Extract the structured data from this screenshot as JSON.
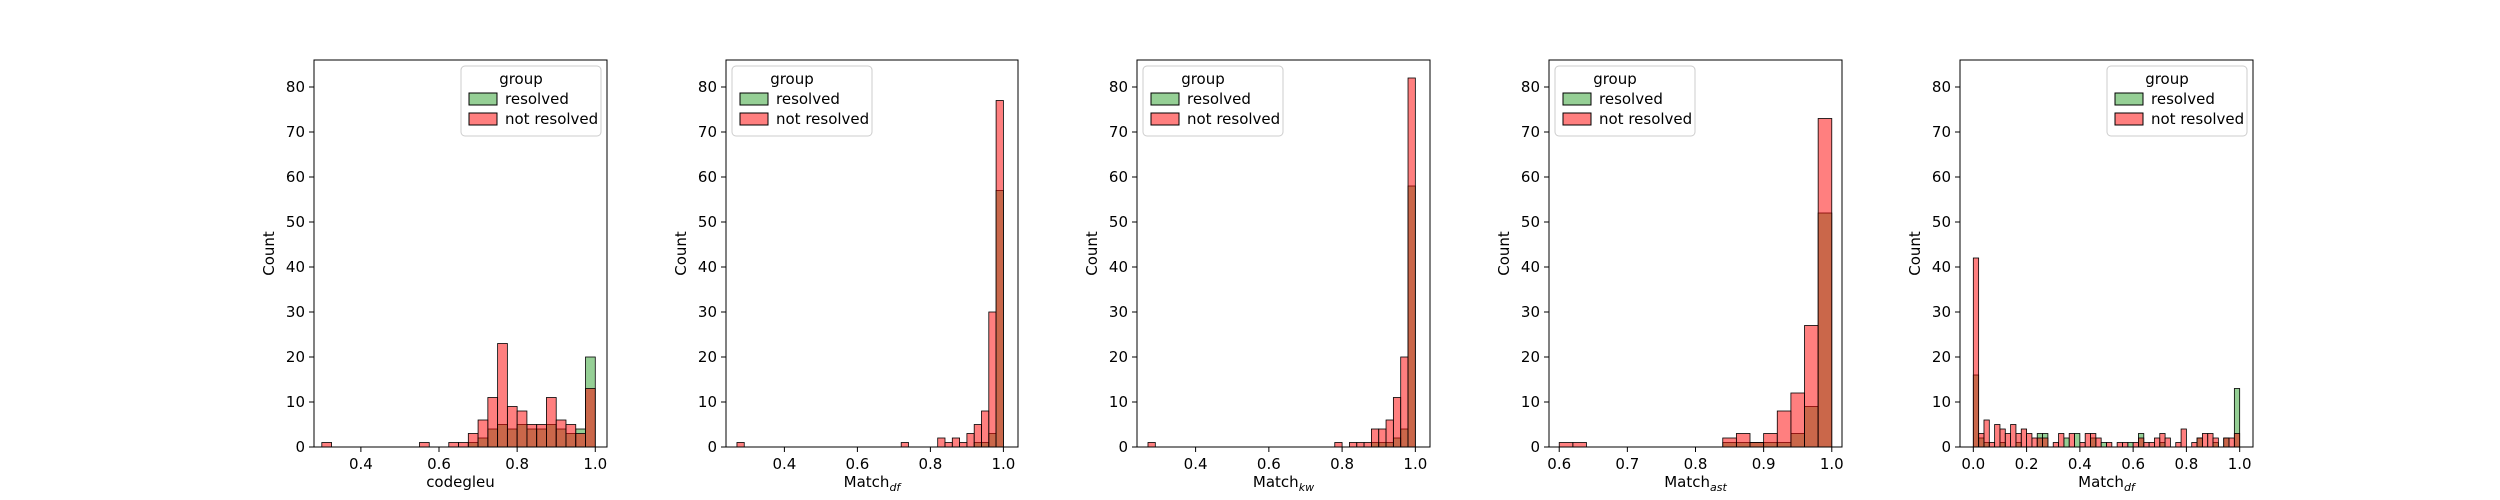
{
  "chart_data": [
    {
      "type": "histogram",
      "xlabel": "codegleu",
      "xlabel_sub": "",
      "ylabel": "Count",
      "xlim": [
        0.28,
        1.03
      ],
      "ylim": [
        0,
        86
      ],
      "xticks": [
        0.4,
        0.6,
        0.8,
        1.0
      ],
      "yticks": [
        0,
        10,
        20,
        30,
        40,
        50,
        60,
        70,
        80
      ],
      "bin_width": 0.025,
      "legend_title": "group",
      "legend_position": "top-right",
      "series": [
        {
          "name": "resolved",
          "color": "#2ca02c",
          "bins": [
            [
              0.675,
              1
            ],
            [
              0.7,
              2
            ],
            [
              0.725,
              4
            ],
            [
              0.75,
              5
            ],
            [
              0.775,
              4
            ],
            [
              0.8,
              5
            ],
            [
              0.825,
              4
            ],
            [
              0.85,
              4
            ],
            [
              0.875,
              5
            ],
            [
              0.9,
              4
            ],
            [
              0.925,
              3
            ],
            [
              0.95,
              4
            ],
            [
              0.975,
              20
            ]
          ]
        },
        {
          "name": "not resolved",
          "color": "#ff0000",
          "bins": [
            [
              0.3,
              1
            ],
            [
              0.55,
              1
            ],
            [
              0.625,
              1
            ],
            [
              0.65,
              1
            ],
            [
              0.675,
              3
            ],
            [
              0.7,
              6
            ],
            [
              0.725,
              11
            ],
            [
              0.75,
              23
            ],
            [
              0.775,
              9
            ],
            [
              0.8,
              8
            ],
            [
              0.825,
              5
            ],
            [
              0.85,
              5
            ],
            [
              0.875,
              11
            ],
            [
              0.9,
              6
            ],
            [
              0.925,
              5
            ],
            [
              0.95,
              3
            ],
            [
              0.975,
              13
            ]
          ]
        }
      ]
    },
    {
      "type": "histogram",
      "xlabel": "Match",
      "xlabel_sub": "df",
      "ylabel": "Count",
      "xlim": [
        0.24,
        1.04
      ],
      "ylim": [
        0,
        86
      ],
      "xticks": [
        0.4,
        0.6,
        0.8,
        1.0
      ],
      "yticks": [
        0,
        10,
        20,
        30,
        40,
        50,
        60,
        70,
        80
      ],
      "bin_width": 0.02,
      "legend_title": "group",
      "legend_position": "top-left",
      "series": [
        {
          "name": "resolved",
          "color": "#2ca02c",
          "bins": [
            [
              0.92,
              1
            ],
            [
              0.94,
              1
            ],
            [
              0.96,
              3
            ],
            [
              0.98,
              57
            ]
          ]
        },
        {
          "name": "not resolved",
          "color": "#ff0000",
          "bins": [
            [
              0.27,
              1
            ],
            [
              0.72,
              1
            ],
            [
              0.82,
              2
            ],
            [
              0.84,
              1
            ],
            [
              0.86,
              2
            ],
            [
              0.88,
              1
            ],
            [
              0.9,
              3
            ],
            [
              0.92,
              5
            ],
            [
              0.94,
              8
            ],
            [
              0.96,
              30
            ],
            [
              0.98,
              77
            ]
          ]
        }
      ]
    },
    {
      "type": "histogram",
      "xlabel": "Match",
      "xlabel_sub": "kw",
      "ylabel": "Count",
      "xlim": [
        0.24,
        1.04
      ],
      "ylim": [
        0,
        86
      ],
      "xticks": [
        0.4,
        0.6,
        0.8,
        1.0
      ],
      "yticks": [
        0,
        10,
        20,
        30,
        40,
        50,
        60,
        70,
        80
      ],
      "bin_width": 0.02,
      "legend_title": "group",
      "legend_position": "top-left",
      "series": [
        {
          "name": "resolved",
          "color": "#2ca02c",
          "bins": [
            [
              0.88,
              1
            ],
            [
              0.9,
              1
            ],
            [
              0.92,
              1
            ],
            [
              0.94,
              2
            ],
            [
              0.96,
              4
            ],
            [
              0.98,
              58
            ]
          ]
        },
        {
          "name": "not resolved",
          "color": "#ff0000",
          "bins": [
            [
              0.27,
              1
            ],
            [
              0.78,
              1
            ],
            [
              0.82,
              1
            ],
            [
              0.84,
              1
            ],
            [
              0.86,
              1
            ],
            [
              0.88,
              4
            ],
            [
              0.9,
              4
            ],
            [
              0.92,
              6
            ],
            [
              0.94,
              11
            ],
            [
              0.96,
              20
            ],
            [
              0.98,
              82
            ]
          ]
        }
      ]
    },
    {
      "type": "histogram",
      "xlabel": "Match",
      "xlabel_sub": "ast",
      "ylabel": "Count",
      "xlim": [
        0.585,
        1.015
      ],
      "ylim": [
        0,
        86
      ],
      "xticks": [
        0.6,
        0.7,
        0.8,
        0.9,
        1.0
      ],
      "yticks": [
        0,
        10,
        20,
        30,
        40,
        50,
        60,
        70,
        80
      ],
      "bin_width": 0.02,
      "legend_title": "group",
      "legend_position": "top-left",
      "series": [
        {
          "name": "resolved",
          "color": "#2ca02c",
          "bins": [
            [
              0.84,
              1
            ],
            [
              0.86,
              1
            ],
            [
              0.88,
              1
            ],
            [
              0.9,
              1
            ],
            [
              0.92,
              1
            ],
            [
              0.94,
              3
            ],
            [
              0.96,
              9
            ],
            [
              0.98,
              52
            ]
          ]
        },
        {
          "name": "not resolved",
          "color": "#ff0000",
          "bins": [
            [
              0.6,
              1
            ],
            [
              0.62,
              1
            ],
            [
              0.84,
              2
            ],
            [
              0.86,
              3
            ],
            [
              0.88,
              1
            ],
            [
              0.9,
              3
            ],
            [
              0.92,
              8
            ],
            [
              0.94,
              12
            ],
            [
              0.96,
              27
            ],
            [
              0.98,
              73
            ]
          ]
        }
      ]
    },
    {
      "type": "histogram",
      "xlabel": "Match",
      "xlabel_sub": "df",
      "ylabel": "Count",
      "xlim": [
        -0.05,
        1.05
      ],
      "ylim": [
        0,
        86
      ],
      "xticks": [
        0.0,
        0.2,
        0.4,
        0.6,
        0.8,
        1.0
      ],
      "yticks": [
        0,
        10,
        20,
        30,
        40,
        50,
        60,
        70,
        80
      ],
      "bin_width": 0.02,
      "legend_title": "group",
      "legend_position": "top-right",
      "series": [
        {
          "name": "resolved",
          "color": "#2ca02c",
          "bins": [
            [
              0.0,
              16
            ],
            [
              0.02,
              2
            ],
            [
              0.04,
              1
            ],
            [
              0.1,
              1
            ],
            [
              0.16,
              1
            ],
            [
              0.24,
              3
            ],
            [
              0.26,
              3
            ],
            [
              0.34,
              2
            ],
            [
              0.38,
              3
            ],
            [
              0.44,
              2
            ],
            [
              0.48,
              1
            ],
            [
              0.58,
              1
            ],
            [
              0.62,
              3
            ],
            [
              0.7,
              1
            ],
            [
              0.84,
              2
            ],
            [
              0.9,
              1
            ],
            [
              0.94,
              2
            ],
            [
              0.98,
              13
            ]
          ]
        },
        {
          "name": "not resolved",
          "color": "#ff0000",
          "bins": [
            [
              0.0,
              42
            ],
            [
              0.02,
              3
            ],
            [
              0.04,
              6
            ],
            [
              0.06,
              1
            ],
            [
              0.08,
              5
            ],
            [
              0.1,
              4
            ],
            [
              0.12,
              3
            ],
            [
              0.14,
              5
            ],
            [
              0.16,
              3
            ],
            [
              0.18,
              4
            ],
            [
              0.2,
              3
            ],
            [
              0.22,
              2
            ],
            [
              0.24,
              2
            ],
            [
              0.26,
              2
            ],
            [
              0.3,
              1
            ],
            [
              0.32,
              3
            ],
            [
              0.36,
              3
            ],
            [
              0.4,
              1
            ],
            [
              0.42,
              3
            ],
            [
              0.44,
              3
            ],
            [
              0.46,
              2
            ],
            [
              0.5,
              1
            ],
            [
              0.54,
              1
            ],
            [
              0.56,
              1
            ],
            [
              0.6,
              1
            ],
            [
              0.62,
              2
            ],
            [
              0.64,
              1
            ],
            [
              0.66,
              1
            ],
            [
              0.68,
              2
            ],
            [
              0.7,
              3
            ],
            [
              0.72,
              2
            ],
            [
              0.76,
              1
            ],
            [
              0.78,
              4
            ],
            [
              0.82,
              1
            ],
            [
              0.84,
              2
            ],
            [
              0.86,
              3
            ],
            [
              0.88,
              3
            ],
            [
              0.9,
              2
            ],
            [
              0.94,
              2
            ],
            [
              0.96,
              2
            ],
            [
              0.98,
              3
            ]
          ]
        }
      ]
    }
  ]
}
